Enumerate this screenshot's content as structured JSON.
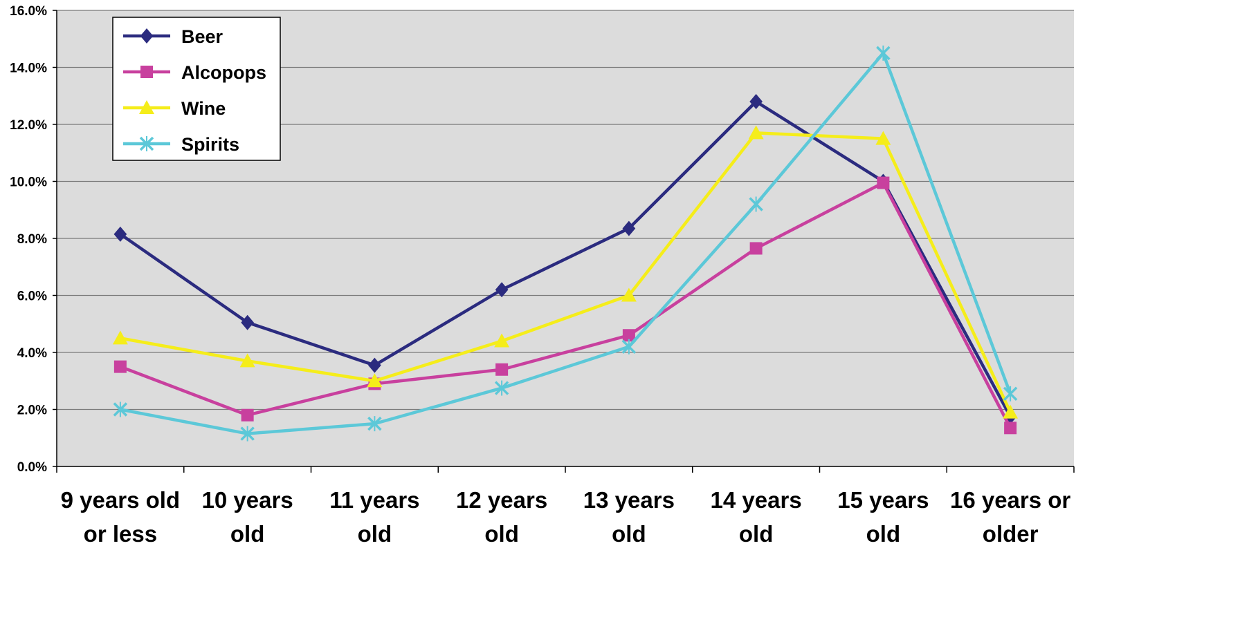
{
  "chart_data": {
    "type": "line",
    "title": "",
    "xlabel": "",
    "ylabel": "",
    "categories": [
      [
        "9 years old",
        "or less"
      ],
      [
        "10 years",
        "old"
      ],
      [
        "11 years",
        "old"
      ],
      [
        "12 years",
        "old"
      ],
      [
        "13 years",
        "old"
      ],
      [
        "14 years",
        "old"
      ],
      [
        "15 years",
        "old"
      ],
      [
        "16 years or",
        "older"
      ]
    ],
    "ylim": [
      0,
      16
    ],
    "yticks": [
      "0.0%",
      "2.0%",
      "4.0%",
      "6.0%",
      "8.0%",
      "10.0%",
      "12.0%",
      "14.0%",
      "16.0%"
    ],
    "grid": true,
    "legend_position": "top-left",
    "series": [
      {
        "name": "Beer",
        "color": "#2b2b7f",
        "marker": "diamond",
        "values": [
          8.15,
          5.05,
          3.55,
          6.2,
          8.35,
          12.8,
          10.0,
          1.75
        ]
      },
      {
        "name": "Alcopops",
        "color": "#c8409e",
        "marker": "square",
        "values": [
          3.5,
          1.8,
          2.9,
          3.4,
          4.6,
          7.65,
          9.95,
          1.35
        ]
      },
      {
        "name": "Wine",
        "color": "#f5ed1a",
        "marker": "triangle",
        "values": [
          4.5,
          3.7,
          3.0,
          4.4,
          6.0,
          11.7,
          11.5,
          1.9
        ]
      },
      {
        "name": "Spirits",
        "color": "#5cc8d8",
        "marker": "x",
        "values": [
          2.0,
          1.15,
          1.5,
          2.75,
          4.2,
          9.2,
          14.5,
          2.55
        ]
      }
    ]
  }
}
